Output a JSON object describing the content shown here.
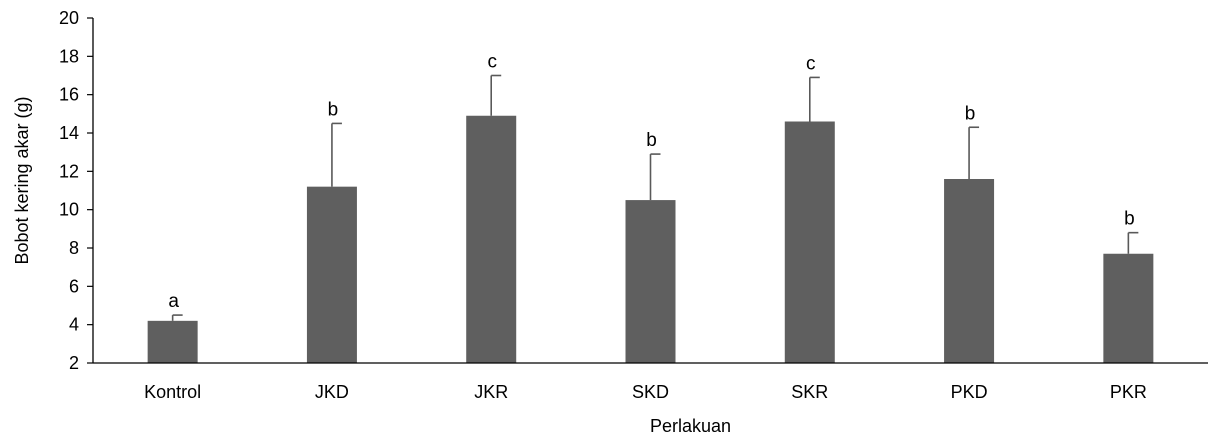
{
  "chart_data": {
    "type": "bar",
    "title": "",
    "xlabel": "Perlakuan",
    "ylabel": "Bobot kering akar (g)",
    "ylim": [
      2,
      20
    ],
    "yticks": [
      2,
      4,
      6,
      8,
      10,
      12,
      14,
      16,
      18,
      20
    ],
    "ytick_labels": [
      "2",
      "4",
      "6",
      "8",
      "10",
      "12",
      "14",
      "16",
      "18",
      "20"
    ],
    "grid": false,
    "categories": [
      "Kontrol",
      "JKD",
      "JKR",
      "SKD",
      "SKR",
      "PKD",
      "PKR"
    ],
    "values": [
      4.2,
      11.2,
      14.9,
      10.5,
      14.6,
      11.6,
      7.7
    ],
    "error_upper": [
      0.3,
      3.3,
      2.1,
      2.4,
      2.3,
      2.7,
      1.1
    ],
    "significance_labels": [
      "a",
      "b",
      "c",
      "b",
      "c",
      "b",
      "b"
    ],
    "bar_color": "#5f5f5f",
    "axis_color": "#000000",
    "error_bar_color": "#595959"
  }
}
